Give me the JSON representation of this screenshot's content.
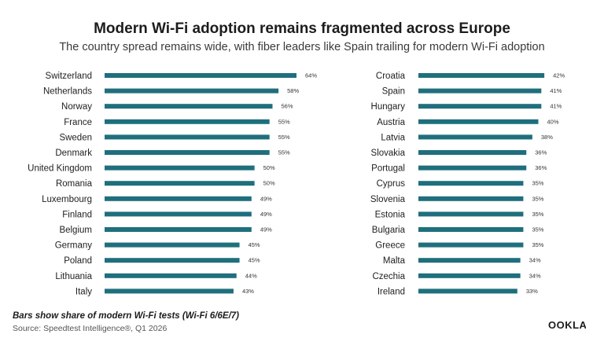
{
  "title": "Modern Wi-Fi adoption remains fragmented across Europe",
  "subtitle": "The country spread remains wide, with fiber leaders like Spain trailing for modern Wi-Fi adoption",
  "footnote": "Bars show share of modern Wi-Fi tests (Wi-Fi 6/6E/7)",
  "source": "Source: Speedtest Intelligence®, Q1 2026",
  "logo_text": "OOKLA",
  "colors": {
    "bar": "#1f6f7d"
  },
  "chart_data": [
    {
      "type": "bar",
      "orientation": "horizontal",
      "value_suffix": "%",
      "xlim": [
        0,
        64
      ],
      "categories": [
        "Switzerland",
        "Netherlands",
        "Norway",
        "France",
        "Sweden",
        "Denmark",
        "United Kingdom",
        "Romania",
        "Luxembourg",
        "Finland",
        "Belgium",
        "Germany",
        "Poland",
        "Lithuania",
        "Italy"
      ],
      "values": [
        64,
        58,
        56,
        55,
        55,
        55,
        50,
        50,
        49,
        49,
        49,
        45,
        45,
        44,
        43
      ]
    },
    {
      "type": "bar",
      "orientation": "horizontal",
      "value_suffix": "%",
      "xlim": [
        0,
        64
      ],
      "categories": [
        "Croatia",
        "Spain",
        "Hungary",
        "Austria",
        "Latvia",
        "Slovakia",
        "Portugal",
        "Cyprus",
        "Slovenia",
        "Estonia",
        "Bulgaria",
        "Greece",
        "Malta",
        "Czechia",
        "Ireland"
      ],
      "values": [
        42,
        41,
        41,
        40,
        38,
        36,
        36,
        35,
        35,
        35,
        35,
        35,
        34,
        34,
        33
      ]
    }
  ]
}
